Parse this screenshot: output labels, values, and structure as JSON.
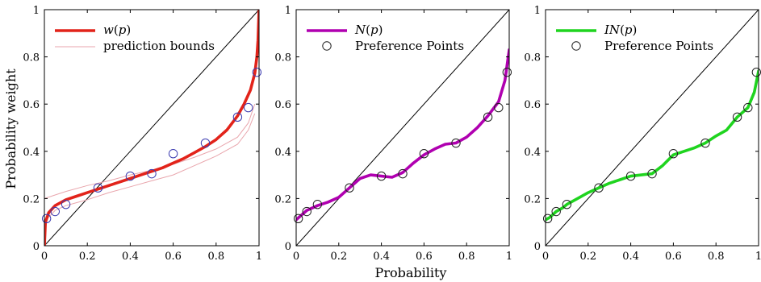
{
  "figure": {
    "xlabel": "Probability",
    "ylabel": "Probability weight"
  },
  "chart_data": [
    {
      "type": "line",
      "xlim": [
        0,
        1
      ],
      "ylim": [
        0,
        1
      ],
      "xticks": [
        "0",
        "0.2",
        "0.4",
        "0.6",
        "0.8",
        "1"
      ],
      "yticks": [
        "0",
        "0.2",
        "0.4",
        "0.6",
        "0.8",
        "1"
      ],
      "grid": false,
      "legend_placement": "top-left",
      "curve_color": "#e2231a",
      "bounds_color": "#e9a6ad",
      "marker_color": "#3b3bb0",
      "legend": {
        "curve_func": "w",
        "curve_arg": "p",
        "bounds_label": "prediction bounds"
      },
      "diagonal": {
        "x": [
          0,
          1
        ],
        "y": [
          0,
          1
        ]
      },
      "curve": {
        "x": [
          0,
          0.005,
          0.02,
          0.05,
          0.1,
          0.15,
          0.2,
          0.25,
          0.3,
          0.35,
          0.4,
          0.45,
          0.5,
          0.55,
          0.6,
          0.65,
          0.7,
          0.75,
          0.8,
          0.85,
          0.9,
          0.93,
          0.96,
          0.98,
          0.99,
          0.995,
          1
        ],
        "y": [
          0,
          0.1,
          0.14,
          0.17,
          0.195,
          0.21,
          0.225,
          0.24,
          0.255,
          0.27,
          0.285,
          0.3,
          0.315,
          0.33,
          0.35,
          0.37,
          0.395,
          0.42,
          0.45,
          0.49,
          0.55,
          0.6,
          0.66,
          0.73,
          0.8,
          0.87,
          1.0
        ]
      },
      "bounds_upper": {
        "x": [
          0.0,
          0.05,
          0.1,
          0.2,
          0.3,
          0.4,
          0.5,
          0.6,
          0.7,
          0.8,
          0.9,
          0.95,
          0.98
        ],
        "y": [
          0.2,
          0.215,
          0.23,
          0.255,
          0.275,
          0.3,
          0.32,
          0.345,
          0.375,
          0.41,
          0.46,
          0.52,
          0.6
        ]
      },
      "bounds_lower": {
        "x": [
          0.02,
          0.05,
          0.1,
          0.2,
          0.3,
          0.4,
          0.5,
          0.6,
          0.7,
          0.8,
          0.9,
          0.95,
          0.98
        ],
        "y": [
          0.12,
          0.15,
          0.17,
          0.195,
          0.225,
          0.25,
          0.275,
          0.3,
          0.34,
          0.38,
          0.43,
          0.49,
          0.56
        ]
      },
      "markers": {
        "x": [
          0.01,
          0.05,
          0.1,
          0.25,
          0.4,
          0.5,
          0.6,
          0.75,
          0.9,
          0.95,
          0.99
        ],
        "y": [
          0.115,
          0.145,
          0.175,
          0.245,
          0.295,
          0.305,
          0.39,
          0.435,
          0.545,
          0.585,
          0.735
        ]
      }
    },
    {
      "type": "line",
      "xlim": [
        0,
        1
      ],
      "ylim": [
        0,
        1
      ],
      "xticks": [
        "0",
        "0.2",
        "0.4",
        "0.6",
        "0.8",
        "1"
      ],
      "yticks": [
        "0",
        "0.2",
        "0.4",
        "0.6",
        "0.8",
        "1"
      ],
      "grid": false,
      "legend_placement": "top-left",
      "curve_color": "#b000b0",
      "marker_color": "#202020",
      "legend": {
        "curve_func": "N",
        "curve_arg": "p",
        "marker_label": "Preference Points"
      },
      "diagonal": {
        "x": [
          0,
          1
        ],
        "y": [
          0,
          1
        ]
      },
      "curve": {
        "x": [
          0,
          0.05,
          0.1,
          0.15,
          0.2,
          0.25,
          0.3,
          0.35,
          0.4,
          0.45,
          0.5,
          0.55,
          0.6,
          0.65,
          0.7,
          0.75,
          0.8,
          0.85,
          0.9,
          0.95,
          0.98,
          1
        ],
        "y": [
          0.11,
          0.15,
          0.17,
          0.185,
          0.205,
          0.245,
          0.285,
          0.3,
          0.295,
          0.29,
          0.31,
          0.35,
          0.385,
          0.41,
          0.43,
          0.435,
          0.46,
          0.5,
          0.55,
          0.61,
          0.7,
          0.83
        ]
      },
      "markers": {
        "x": [
          0.01,
          0.05,
          0.1,
          0.25,
          0.4,
          0.5,
          0.6,
          0.75,
          0.9,
          0.95,
          0.99
        ],
        "y": [
          0.115,
          0.145,
          0.175,
          0.245,
          0.295,
          0.305,
          0.39,
          0.435,
          0.545,
          0.585,
          0.735
        ]
      }
    },
    {
      "type": "line",
      "xlim": [
        0,
        1
      ],
      "ylim": [
        0,
        1
      ],
      "xticks": [
        "0",
        "0.2",
        "0.4",
        "0.6",
        "0.8",
        "1"
      ],
      "yticks": [
        "0",
        "0.2",
        "0.4",
        "0.6",
        "0.8",
        "1"
      ],
      "grid": false,
      "legend_placement": "top-left",
      "curve_color": "#1fd41f",
      "marker_color": "#202020",
      "legend": {
        "curve_func": "IN",
        "curve_arg": "p",
        "marker_label": "Preference Points"
      },
      "diagonal": {
        "x": [
          0,
          1
        ],
        "y": [
          0,
          1
        ]
      },
      "curve": {
        "x": [
          0,
          0.02,
          0.05,
          0.08,
          0.1,
          0.15,
          0.2,
          0.25,
          0.3,
          0.35,
          0.4,
          0.45,
          0.5,
          0.55,
          0.6,
          0.65,
          0.7,
          0.75,
          0.8,
          0.85,
          0.9,
          0.95,
          0.98,
          1
        ],
        "y": [
          0.11,
          0.12,
          0.145,
          0.16,
          0.175,
          0.2,
          0.225,
          0.245,
          0.265,
          0.28,
          0.295,
          0.3,
          0.305,
          0.34,
          0.385,
          0.4,
          0.415,
          0.435,
          0.465,
          0.49,
          0.545,
          0.585,
          0.65,
          0.74
        ]
      },
      "markers": {
        "x": [
          0.01,
          0.05,
          0.1,
          0.25,
          0.4,
          0.5,
          0.6,
          0.75,
          0.9,
          0.95,
          0.99
        ],
        "y": [
          0.115,
          0.145,
          0.175,
          0.245,
          0.295,
          0.305,
          0.39,
          0.435,
          0.545,
          0.585,
          0.735
        ]
      }
    }
  ]
}
